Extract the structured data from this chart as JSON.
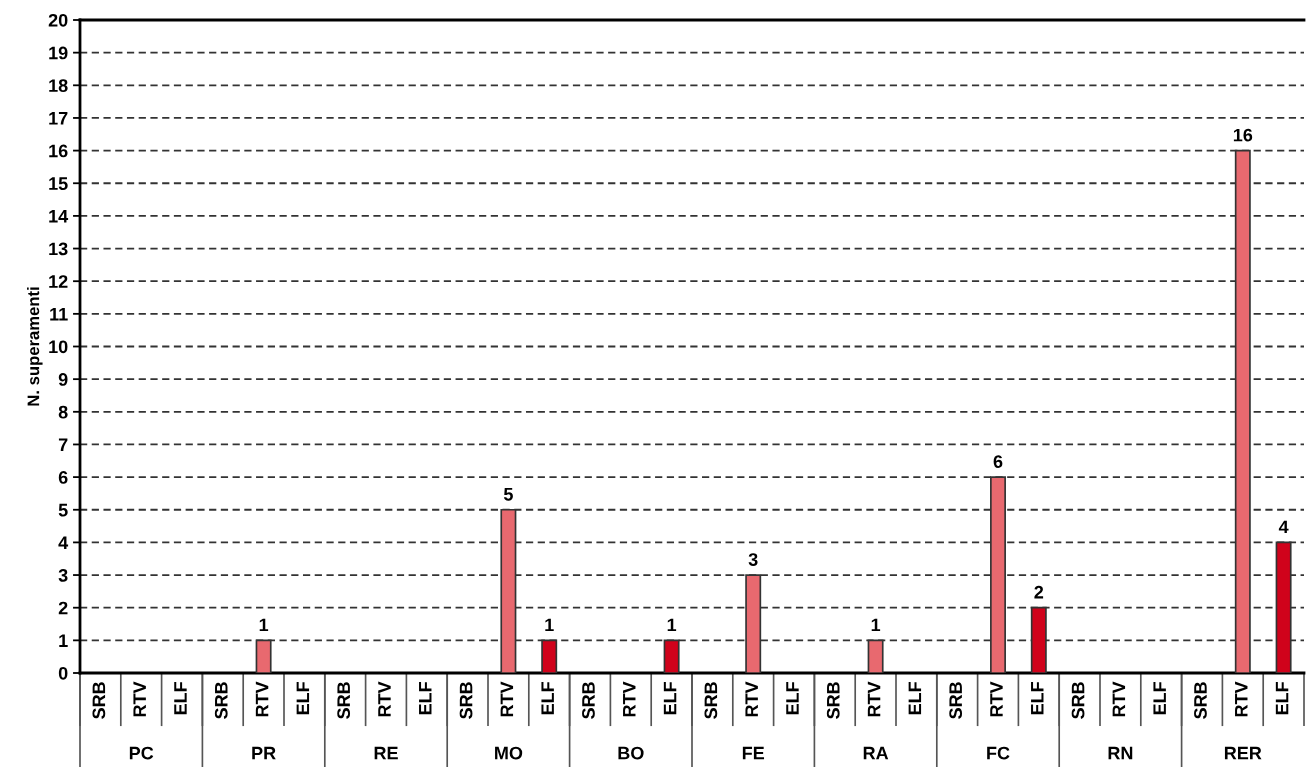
{
  "chart_data": {
    "type": "bar",
    "ylabel": "N. superamenti",
    "categories": [
      "SRB",
      "RTV",
      "ELF",
      "SRB",
      "RTV",
      "ELF",
      "SRB",
      "RTV",
      "ELF",
      "SRB",
      "RTV",
      "ELF",
      "SRB",
      "RTV",
      "ELF",
      "SRB",
      "RTV",
      "ELF",
      "SRB",
      "RTV",
      "ELF",
      "SRB",
      "RTV",
      "ELF",
      "SRB",
      "RTV",
      "ELF",
      "SRB",
      "RTV",
      "ELF"
    ],
    "values": [
      0,
      0,
      0,
      0,
      1,
      0,
      0,
      0,
      0,
      0,
      5,
      1,
      0,
      0,
      1,
      0,
      3,
      0,
      0,
      1,
      0,
      0,
      6,
      2,
      0,
      0,
      0,
      0,
      16,
      4
    ],
    "colors": [
      "#e8696f",
      "#e8696f",
      "#d0021b",
      "#e8696f",
      "#e8696f",
      "#d0021b",
      "#e8696f",
      "#e8696f",
      "#d0021b",
      "#e8696f",
      "#e8696f",
      "#d0021b",
      "#e8696f",
      "#e8696f",
      "#d0021b",
      "#e8696f",
      "#e8696f",
      "#d0021b",
      "#e8696f",
      "#e8696f",
      "#d0021b",
      "#e8696f",
      "#e8696f",
      "#d0021b",
      "#e8696f",
      "#e8696f",
      "#d0021b",
      "#e8696f",
      "#e8696f",
      "#d0021b"
    ],
    "value_labels": [
      null,
      null,
      null,
      null,
      "1",
      null,
      null,
      null,
      null,
      null,
      "5",
      "1",
      null,
      null,
      "1",
      null,
      "3",
      null,
      null,
      "1",
      null,
      null,
      "6",
      "2",
      null,
      null,
      null,
      null,
      "16",
      "4"
    ],
    "annotations": [
      "PC",
      "PR",
      "RE",
      "MO",
      "BO",
      "FE",
      "RA",
      "FC",
      "RN",
      "RER"
    ],
    "ylim": [
      0,
      20
    ],
    "yticks": [
      0,
      1,
      2,
      3,
      4,
      5,
      6,
      7,
      8,
      9,
      10,
      11,
      12,
      13,
      14,
      15,
      16,
      17,
      18,
      19,
      20
    ],
    "grid": "y"
  }
}
